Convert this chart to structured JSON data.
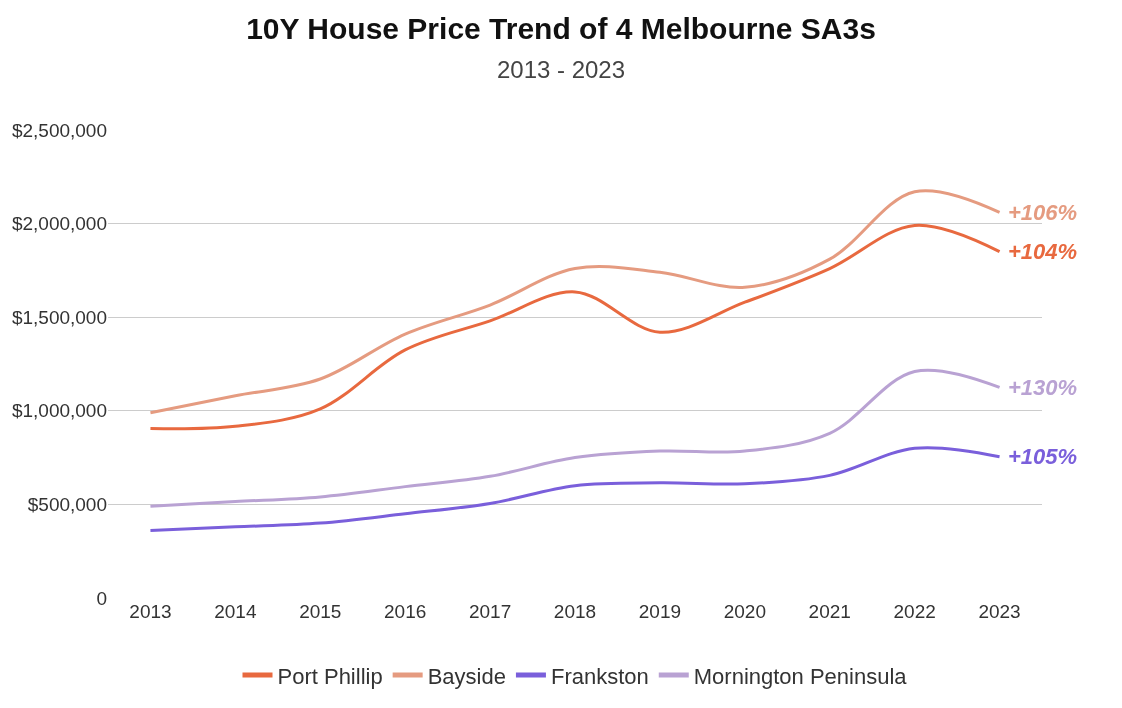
{
  "chart_data": {
    "type": "line",
    "title": "10Y House Price Trend of 4 Melbourne SA3s",
    "subtitle": "2013 - 2023",
    "categories": [
      "2013",
      "2014",
      "2015",
      "2016",
      "2017",
      "2018",
      "2019",
      "2020",
      "2021",
      "2022",
      "2023"
    ],
    "series": [
      {
        "name": "Port Phillip",
        "color": "#e8693f",
        "values": [
          905000,
          917000,
          1010000,
          1325000,
          1480000,
          1635000,
          1420000,
          1580000,
          1760000,
          1990000,
          1850000
        ]
      },
      {
        "name": "Bayside",
        "color": "#e59b80",
        "values": [
          990000,
          1080000,
          1170000,
          1410000,
          1565000,
          1760000,
          1740000,
          1660000,
          1810000,
          2170000,
          2060000
        ]
      },
      {
        "name": "Frankston",
        "color": "#7a5fdb",
        "values": [
          360000,
          380000,
          400000,
          450000,
          505000,
          600000,
          615000,
          610000,
          655000,
          800000,
          755000
        ]
      },
      {
        "name": "Mornington Peninsula",
        "color": "#b9a2d3",
        "values": [
          490000,
          515000,
          540000,
          595000,
          650000,
          750000,
          785000,
          785000,
          880000,
          1210000,
          1125000
        ]
      }
    ],
    "annotations": [
      {
        "text": "+104%",
        "x": "2023",
        "y": 1850000
      },
      {
        "text": "+106%",
        "x": "2023",
        "y": 2060000
      },
      {
        "text": "+105%",
        "x": "2023",
        "y": 755000
      },
      {
        "text": "+130%",
        "x": "2023",
        "y": 1125000
      }
    ],
    "ylim": [
      0,
      2500000
    ],
    "yticks": [
      {
        "value": 0,
        "label": "0"
      },
      {
        "value": 500000,
        "label": "$500,000"
      },
      {
        "value": 1000000,
        "label": "$1,000,000"
      },
      {
        "value": 1500000,
        "label": "$1,500,000"
      },
      {
        "value": 2000000,
        "label": "$2,000,000"
      },
      {
        "value": 2500000,
        "label": "$2,500,000"
      }
    ],
    "grid": "y",
    "legend": "bottom",
    "marker": "none",
    "line_style": "solid"
  }
}
